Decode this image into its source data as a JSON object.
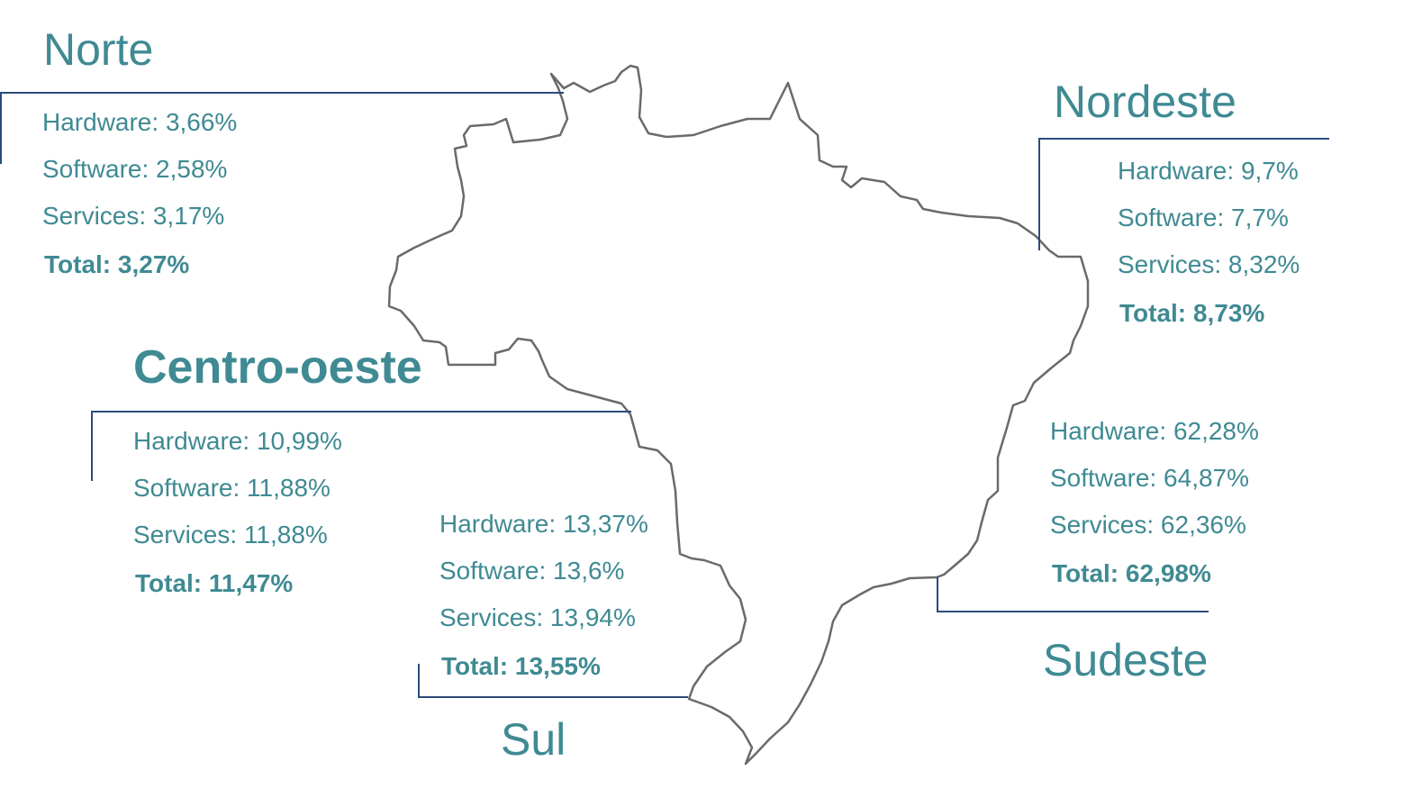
{
  "colors": {
    "text": "#3f8a93",
    "leader_lines": "#2b4b7e",
    "map_outline": "#6a6a6a",
    "background": "#ffffff"
  },
  "regions": {
    "norte": {
      "name": "Norte",
      "hardware": "Hardware: 3,66%",
      "software": "Software: 2,58%",
      "services": "Services: 3,17%",
      "total": "Total: 3,27%"
    },
    "nordeste": {
      "name": "Nordeste",
      "hardware": "Hardware: 9,7%",
      "software": "Software: 7,7%",
      "services": "Services: 8,32%",
      "total": "Total: 8,73%"
    },
    "centro_oeste": {
      "name": "Centro-oeste",
      "hardware": "Hardware: 10,99%",
      "software": "Software: 11,88%",
      "services": "Services: 11,88%",
      "total": "Total: 11,47%"
    },
    "sul": {
      "name": "Sul",
      "hardware": "Hardware: 13,37%",
      "software": "Software: 13,6%",
      "services": "Services: 13,94%",
      "total": "Total: 13,55%"
    },
    "sudeste": {
      "name": "Sudeste",
      "hardware": "Hardware: 62,28%",
      "software": "Software: 64,87%",
      "services": "Services: 62,36%",
      "total": "Total: 62,98%"
    }
  }
}
